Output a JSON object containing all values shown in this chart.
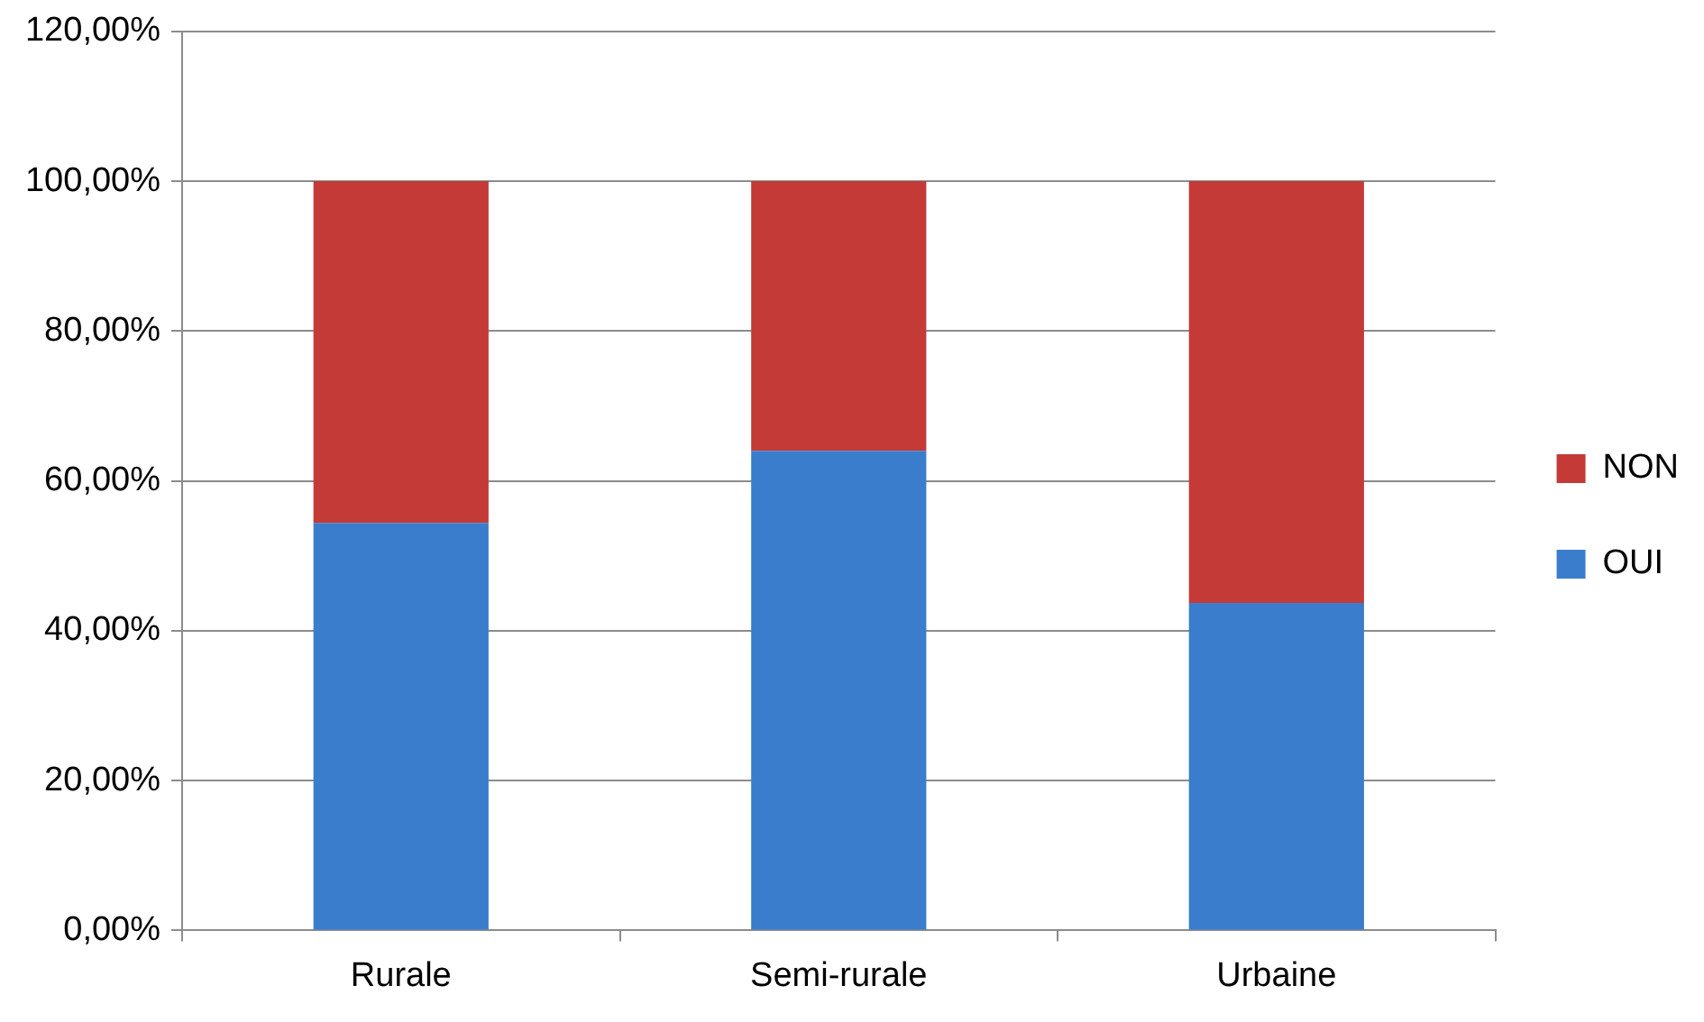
{
  "chart_data": {
    "type": "bar",
    "stacked": true,
    "categories": [
      "Rurale",
      "Semi-rurale",
      "Urbaine"
    ],
    "series": [
      {
        "name": "OUI",
        "color": "#3a7dcc",
        "values": [
          54.4,
          64.0,
          43.7
        ]
      },
      {
        "name": "NON",
        "color": "#c43a37",
        "values": [
          45.6,
          36.0,
          56.3
        ]
      }
    ],
    "ylim": [
      0,
      120
    ],
    "yticks": [
      {
        "value": 0,
        "label": "0,00%"
      },
      {
        "value": 20,
        "label": "20,00%"
      },
      {
        "value": 40,
        "label": "40,00%"
      },
      {
        "value": 60,
        "label": "60,00%"
      },
      {
        "value": 80,
        "label": "80,00%"
      },
      {
        "value": 100,
        "label": "100,00%"
      },
      {
        "value": 120,
        "label": "120,00%"
      }
    ],
    "grid": "y",
    "legend": "right"
  }
}
